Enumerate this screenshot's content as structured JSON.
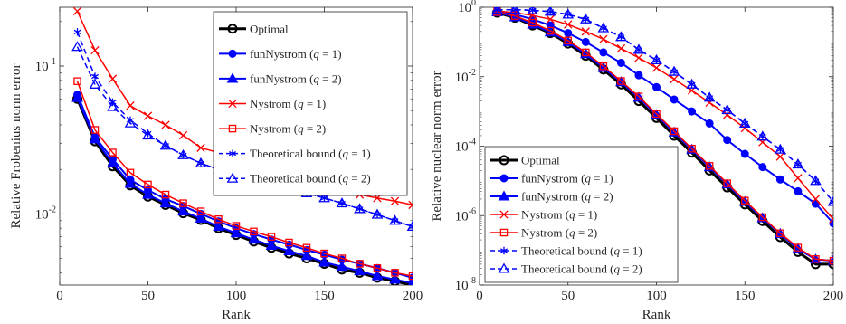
{
  "chart_data": [
    {
      "type": "line",
      "xlabel": "Rank",
      "ylabel": "Relative Frobenius norm error",
      "y_scale": "log",
      "xlim": [
        0,
        200
      ],
      "ylim": [
        0.0033,
        0.25
      ],
      "xticks": [
        0,
        50,
        100,
        150,
        200
      ],
      "xtick_labels": [
        "0",
        "50",
        "100",
        "150",
        "200"
      ],
      "yticks": [
        0.01,
        0.1
      ],
      "ytick_labels": [
        [
          "10",
          "-2"
        ],
        [
          "10",
          "-1"
        ]
      ],
      "legend_position": "top-right",
      "x": [
        10,
        20,
        30,
        40,
        50,
        60,
        70,
        80,
        90,
        100,
        110,
        120,
        130,
        140,
        150,
        160,
        170,
        180,
        190,
        200
      ],
      "series": [
        {
          "name": "Optimal",
          "label_parts": [
            "Optimal"
          ],
          "color": "#000000",
          "dash": "solid",
          "marker": "circle",
          "width": 3,
          "values": [
            0.06,
            0.031,
            0.021,
            0.0156,
            0.0131,
            0.0115,
            0.0101,
            0.0091,
            0.008,
            0.0072,
            0.0065,
            0.0059,
            0.0054,
            0.005,
            0.0046,
            0.0042,
            0.004,
            0.0037,
            0.0035,
            0.0033
          ]
        },
        {
          "name": "funNystrom (q = 1)",
          "label_parts": [
            "funNystrom (",
            "q",
            " = 1)"
          ],
          "color": "#0000ff",
          "dash": "solid",
          "marker": "filled-circle",
          "width": 2,
          "values": [
            0.064,
            0.033,
            0.0235,
            0.017,
            0.0145,
            0.0126,
            0.0113,
            0.01,
            0.0089,
            0.008,
            0.0073,
            0.0067,
            0.0062,
            0.0057,
            0.0053,
            0.0049,
            0.0046,
            0.0043,
            0.004,
            0.0037
          ]
        },
        {
          "name": "funNystrom (q = 2)",
          "label_parts": [
            "funNystrom (",
            "q",
            " = 2)"
          ],
          "color": "#0000ff",
          "dash": "solid",
          "marker": "filled-triangle",
          "width": 2,
          "values": [
            0.061,
            0.032,
            0.022,
            0.016,
            0.0135,
            0.0118,
            0.0104,
            0.0093,
            0.0082,
            0.0074,
            0.0067,
            0.0061,
            0.0056,
            0.0052,
            0.0047,
            0.0044,
            0.0041,
            0.0038,
            0.0036,
            0.0034
          ]
        },
        {
          "name": "Nystrom (q = 1)",
          "label_parts": [
            "Nystrom (",
            "q",
            " = 1)"
          ],
          "color": "#ff0000",
          "dash": "solid",
          "marker": "x",
          "width": 1.5,
          "values": [
            0.235,
            0.128,
            0.082,
            0.054,
            0.046,
            0.04,
            0.034,
            0.028,
            0.026,
            0.023,
            0.021,
            0.0195,
            0.0178,
            0.0164,
            0.0155,
            0.0145,
            0.0135,
            0.0128,
            0.0122,
            0.0115
          ]
        },
        {
          "name": "Nystrom (q = 2)",
          "label_parts": [
            "Nystrom (",
            "q",
            " = 2)"
          ],
          "color": "#ff0000",
          "dash": "solid",
          "marker": "square",
          "width": 1.5,
          "values": [
            0.079,
            0.037,
            0.026,
            0.019,
            0.0158,
            0.0135,
            0.0118,
            0.0104,
            0.0092,
            0.0083,
            0.0076,
            0.007,
            0.0064,
            0.0059,
            0.0054,
            0.005,
            0.0046,
            0.0043,
            0.004,
            0.0038
          ]
        },
        {
          "name": "Theoretical bound (q = 1)",
          "label_parts": [
            "Theoretical bound (",
            "q",
            " = 1)"
          ],
          "color": "#0000ff",
          "dash": "dashed",
          "marker": "star",
          "width": 1.5,
          "values": [
            0.17,
            0.085,
            0.057,
            0.043,
            0.035,
            0.029,
            0.025,
            0.022,
            0.02,
            0.0185,
            0.017,
            0.0158,
            0.0148,
            0.0138,
            0.0128,
            0.0118,
            0.0108,
            0.0099,
            0.009,
            0.0082
          ]
        },
        {
          "name": "Theoretical bound (q = 2)",
          "label_parts": [
            "Theoretical bound (",
            "q",
            " = 2)"
          ],
          "color": "#0000ff",
          "dash": "dashed",
          "marker": "triangle",
          "width": 1.5,
          "values": [
            0.135,
            0.075,
            0.053,
            0.041,
            0.034,
            0.029,
            0.025,
            0.022,
            0.02,
            0.0185,
            0.017,
            0.0158,
            0.0148,
            0.0138,
            0.0128,
            0.0118,
            0.0108,
            0.0099,
            0.009,
            0.0082
          ]
        }
      ]
    },
    {
      "type": "line",
      "xlabel": "Rank",
      "ylabel": "Relative nuclear norm error",
      "y_scale": "log",
      "xlim": [
        0,
        200
      ],
      "ylim": [
        1e-08,
        1
      ],
      "xticks": [
        0,
        50,
        100,
        150,
        200
      ],
      "xtick_labels": [
        "0",
        "50",
        "100",
        "150",
        "200"
      ],
      "yticks": [
        1e-08,
        1e-06,
        0.0001,
        0.01,
        1
      ],
      "ytick_labels": [
        [
          "10",
          "-8"
        ],
        [
          "10",
          "-6"
        ],
        [
          "10",
          "-4"
        ],
        [
          "10",
          "-2"
        ],
        [
          "10",
          "0"
        ]
      ],
      "legend_position": "bottom-left",
      "x": [
        10,
        20,
        30,
        40,
        50,
        60,
        70,
        80,
        90,
        100,
        110,
        120,
        130,
        140,
        150,
        160,
        170,
        180,
        190,
        200
      ],
      "series": [
        {
          "name": "Optimal",
          "label_parts": [
            "Optimal"
          ],
          "color": "#000000",
          "dash": "solid",
          "marker": "circle",
          "width": 3,
          "values": [
            0.7,
            0.5,
            0.3,
            0.18,
            0.09,
            0.04,
            0.016,
            0.006,
            0.002,
            0.00065,
            0.0002,
            6.5e-05,
            2e-05,
            6.5e-06,
            2.1e-06,
            7e-07,
            2.4e-07,
            9e-08,
            4e-08,
            4e-08
          ]
        },
        {
          "name": "funNystrom (q = 1)",
          "label_parts": [
            "funNystrom (",
            "q",
            " = 1)"
          ],
          "color": "#0000ff",
          "dash": "solid",
          "marker": "filled-circle",
          "width": 2,
          "values": [
            0.75,
            0.62,
            0.45,
            0.3,
            0.18,
            0.1,
            0.05,
            0.025,
            0.011,
            0.005,
            0.0022,
            0.001,
            0.00045,
            0.00015,
            6e-05,
            2.5e-05,
            1.1e-05,
            5e-06,
            2.2e-06,
            6e-07
          ]
        },
        {
          "name": "funNystrom (q = 2)",
          "label_parts": [
            "funNystrom (",
            "q",
            " = 2)"
          ],
          "color": "#0000ff",
          "dash": "solid",
          "marker": "filled-triangle",
          "width": 2,
          "values": [
            0.72,
            0.52,
            0.32,
            0.19,
            0.1,
            0.045,
            0.018,
            0.007,
            0.0025,
            0.0008,
            0.00025,
            8e-05,
            2.5e-05,
            8e-06,
            2.5e-06,
            8.5e-07,
            3e-07,
            1.1e-07,
            5.5e-08,
            5e-08
          ]
        },
        {
          "name": "Nystrom (q = 1)",
          "label_parts": [
            "Nystrom (",
            "q",
            " = 1)"
          ],
          "color": "#ff0000",
          "dash": "solid",
          "marker": "x",
          "width": 1.5,
          "values": [
            0.78,
            0.7,
            0.58,
            0.45,
            0.32,
            0.2,
            0.12,
            0.065,
            0.035,
            0.018,
            0.0085,
            0.004,
            0.0018,
            0.0008,
            0.00033,
            0.00013,
            5e-05,
            1.2e-05,
            3e-06,
            8e-07
          ]
        },
        {
          "name": "Nystrom (q = 2)",
          "label_parts": [
            "Nystrom (",
            "q",
            " = 2)"
          ],
          "color": "#ff0000",
          "dash": "solid",
          "marker": "square",
          "width": 1.5,
          "values": [
            0.73,
            0.56,
            0.36,
            0.21,
            0.11,
            0.05,
            0.02,
            0.0075,
            0.0027,
            0.00085,
            0.00027,
            8.5e-05,
            2.7e-05,
            8.5e-06,
            2.7e-06,
            9e-07,
            3.1e-07,
            1.2e-07,
            5.6e-08,
            5e-08
          ]
        },
        {
          "name": "Theoretical bound (q = 1)",
          "label_parts": [
            "Theoretical bound (",
            "q",
            " = 1)"
          ],
          "color": "#0000ff",
          "dash": "dashed",
          "marker": "star",
          "width": 1.5,
          "values": [
            0.85,
            0.85,
            0.82,
            0.75,
            0.62,
            0.45,
            0.25,
            0.14,
            0.06,
            0.03,
            0.014,
            0.006,
            0.0025,
            0.0011,
            0.00045,
            0.00019,
            8e-05,
            3e-05,
            1e-05,
            2.5e-06
          ]
        },
        {
          "name": "Theoretical bound (q = 2)",
          "label_parts": [
            "Theoretical bound (",
            "q",
            " = 2)"
          ],
          "color": "#0000ff",
          "dash": "dashed",
          "marker": "triangle",
          "width": 1.5,
          "values": [
            0.85,
            0.85,
            0.82,
            0.75,
            0.62,
            0.45,
            0.25,
            0.14,
            0.06,
            0.03,
            0.014,
            0.006,
            0.0025,
            0.0011,
            0.00045,
            0.00019,
            8e-05,
            3e-05,
            1e-05,
            2.5e-06
          ]
        }
      ]
    }
  ]
}
